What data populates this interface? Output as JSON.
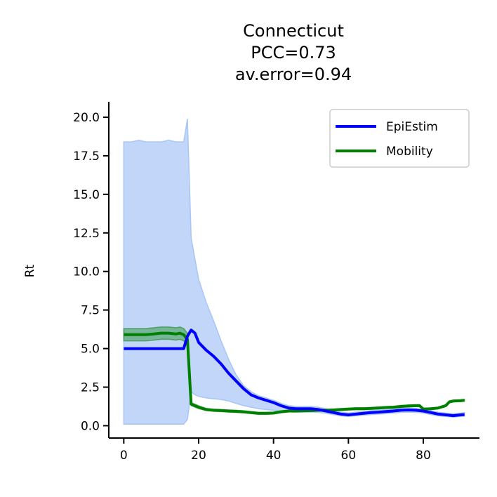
{
  "chart_data": {
    "type": "line",
    "title_lines": [
      "Connecticut",
      "PCC=0.73",
      "av.error=0.94"
    ],
    "xlabel": "",
    "ylabel": "Rt",
    "xlim": [
      -4,
      95
    ],
    "ylim": [
      -0.8,
      21.0
    ],
    "xticks": [
      0,
      20,
      40,
      60,
      80
    ],
    "xtick_labels": [
      "0",
      "20",
      "40",
      "60",
      "80"
    ],
    "yticks": [
      0.0,
      2.5,
      5.0,
      7.5,
      10.0,
      12.5,
      15.0,
      17.5,
      20.0
    ],
    "ytick_labels": [
      "0.0",
      "2.5",
      "5.0",
      "7.5",
      "10.0",
      "12.5",
      "15.0",
      "17.5",
      "20.0"
    ],
    "grid": false,
    "legend_position": "top-right",
    "series": [
      {
        "name": "EpiEstim",
        "color": "#0000ff",
        "x": [
          0,
          2,
          4,
          6,
          8,
          10,
          12,
          14,
          16,
          17,
          18,
          19,
          20,
          22,
          24,
          26,
          28,
          30,
          32,
          34,
          36,
          38,
          40,
          42,
          44,
          46,
          48,
          50,
          52,
          54,
          56,
          58,
          60,
          62,
          64,
          66,
          68,
          70,
          72,
          74,
          76,
          78,
          80,
          82,
          84,
          86,
          88,
          90,
          91
        ],
        "y": [
          5.0,
          5.0,
          5.0,
          5.0,
          5.0,
          5.0,
          5.0,
          5.0,
          5.0,
          5.8,
          6.2,
          6.0,
          5.4,
          4.9,
          4.5,
          4.0,
          3.4,
          2.9,
          2.4,
          2.0,
          1.8,
          1.65,
          1.5,
          1.3,
          1.15,
          1.1,
          1.1,
          1.1,
          1.05,
          0.95,
          0.85,
          0.75,
          0.7,
          0.75,
          0.8,
          0.85,
          0.88,
          0.92,
          0.95,
          1.0,
          1.02,
          1.0,
          0.95,
          0.85,
          0.75,
          0.7,
          0.65,
          0.7,
          0.72
        ],
        "band_color": "#a4c2f4",
        "band_lower": [
          0.1,
          0.1,
          0.1,
          0.1,
          0.1,
          0.1,
          0.1,
          0.1,
          0.1,
          0.4,
          2.2,
          2.0,
          1.9,
          1.8,
          1.75,
          1.7,
          1.6,
          1.45,
          1.3,
          1.2,
          1.1,
          1.05,
          1.0,
          0.95,
          0.9,
          0.88,
          0.88,
          0.88,
          0.86,
          0.8,
          0.72,
          0.64,
          0.6,
          0.64,
          0.68,
          0.72,
          0.75,
          0.78,
          0.82,
          0.86,
          0.88,
          0.86,
          0.82,
          0.72,
          0.64,
          0.6,
          0.55,
          0.6,
          0.62
        ],
        "band_upper": [
          18.4,
          18.4,
          18.5,
          18.4,
          18.4,
          18.4,
          18.5,
          18.4,
          18.4,
          19.9,
          12.2,
          10.8,
          9.5,
          8.0,
          6.8,
          5.5,
          4.3,
          3.3,
          2.6,
          2.2,
          1.95,
          1.8,
          1.65,
          1.45,
          1.3,
          1.25,
          1.25,
          1.25,
          1.2,
          1.1,
          0.98,
          0.88,
          0.82,
          0.88,
          0.92,
          0.98,
          1.0,
          1.05,
          1.08,
          1.12,
          1.15,
          1.12,
          1.08,
          0.98,
          0.88,
          0.82,
          0.78,
          0.82,
          0.85
        ]
      },
      {
        "name": "Mobility",
        "color": "#008000",
        "x": [
          0,
          2,
          4,
          6,
          8,
          10,
          12,
          14,
          15,
          16,
          17,
          18,
          20,
          22,
          24,
          26,
          28,
          30,
          32,
          34,
          36,
          38,
          40,
          42,
          44,
          46,
          48,
          50,
          52,
          54,
          56,
          58,
          60,
          62,
          64,
          66,
          68,
          70,
          72,
          74,
          76,
          78,
          79,
          80,
          82,
          84,
          86,
          87,
          88,
          90,
          91
        ],
        "y": [
          5.9,
          5.9,
          5.9,
          5.9,
          5.95,
          6.0,
          6.0,
          5.95,
          6.0,
          5.9,
          5.6,
          1.4,
          1.2,
          1.05,
          1.0,
          0.98,
          0.95,
          0.93,
          0.9,
          0.85,
          0.8,
          0.8,
          0.82,
          0.9,
          0.95,
          0.95,
          0.97,
          0.98,
          1.0,
          1.0,
          1.02,
          1.05,
          1.08,
          1.1,
          1.1,
          1.12,
          1.15,
          1.18,
          1.2,
          1.25,
          1.28,
          1.3,
          1.3,
          1.08,
          1.1,
          1.15,
          1.3,
          1.55,
          1.6,
          1.62,
          1.65
        ],
        "band_color": "#008000",
        "band_lower": [
          5.5,
          5.5,
          5.5,
          5.5,
          5.55,
          5.6,
          5.6,
          5.55,
          5.6,
          5.5,
          5.2,
          1.3,
          1.1,
          0.98,
          0.93,
          0.91,
          0.88,
          0.86,
          0.83,
          0.78,
          0.74,
          0.74,
          0.76,
          0.84,
          0.89,
          0.89,
          0.91,
          0.92,
          0.94,
          0.94,
          0.96,
          0.99,
          1.02,
          1.04,
          1.04,
          1.06,
          1.09,
          1.12,
          1.14,
          1.19,
          1.22,
          1.24,
          1.24,
          1.03,
          1.05,
          1.1,
          1.24,
          1.49,
          1.54,
          1.56,
          1.59
        ],
        "band_upper": [
          6.3,
          6.3,
          6.3,
          6.3,
          6.35,
          6.4,
          6.4,
          6.35,
          6.4,
          6.3,
          6.0,
          1.5,
          1.3,
          1.12,
          1.07,
          1.05,
          1.02,
          1.0,
          0.97,
          0.92,
          0.86,
          0.86,
          0.88,
          0.96,
          1.01,
          1.01,
          1.03,
          1.04,
          1.06,
          1.06,
          1.08,
          1.11,
          1.14,
          1.16,
          1.16,
          1.18,
          1.21,
          1.24,
          1.26,
          1.31,
          1.34,
          1.36,
          1.36,
          1.13,
          1.15,
          1.2,
          1.36,
          1.61,
          1.66,
          1.68,
          1.71
        ]
      }
    ]
  }
}
